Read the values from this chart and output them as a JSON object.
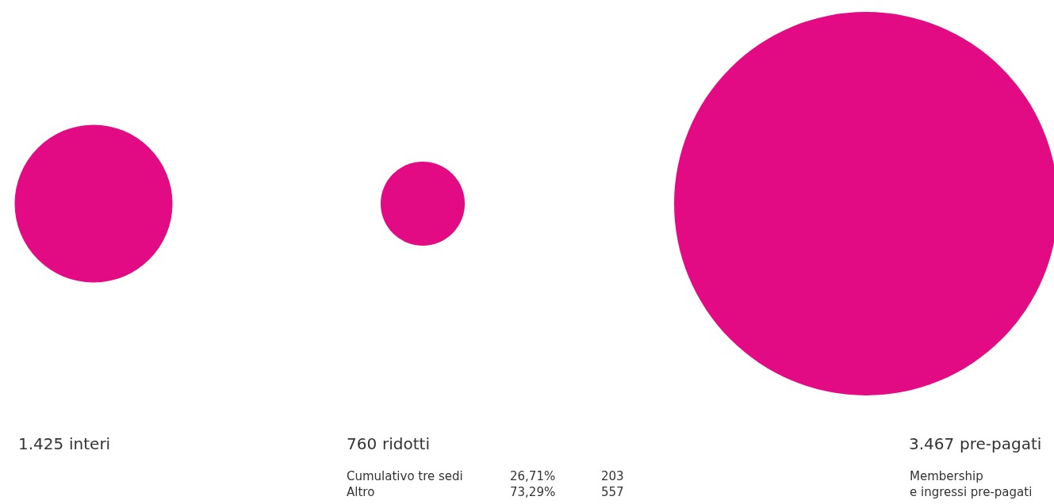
{
  "chart_data": {
    "type": "other",
    "categories": [
      "interi",
      "ridotti",
      "pre-pagati"
    ],
    "values": [
      1425,
      760,
      3467
    ],
    "value_labels": [
      "1.425",
      "760",
      "3.467"
    ],
    "color": "#e30b83",
    "annotations": [
      "Cumulativo tre sedi\nAltro",
      "26,71%\n73,29%",
      "203\n557",
      "Membership\ne ingressi pre-pagati"
    ]
  }
}
